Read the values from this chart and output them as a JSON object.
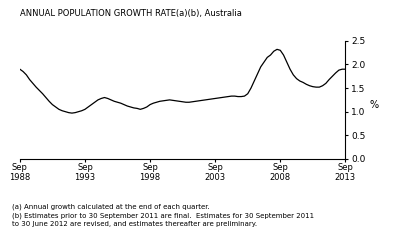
{
  "title": "ANNUAL POPULATION GROWTH RATE(a)(b), Australia",
  "ylabel": "%",
  "ylim": [
    0,
    2.5
  ],
  "yticks": [
    0,
    0.5,
    1.0,
    1.5,
    2.0,
    2.5
  ],
  "x_tick_labels": [
    "Sep\n1988",
    "Sep\n1993",
    "Sep\n1998",
    "Sep\n2003",
    "Sep\n2008",
    "Sep\n2013"
  ],
  "x_tick_positions": [
    1988.75,
    1993.75,
    1998.75,
    2003.75,
    2008.75,
    2013.75
  ],
  "footnote": "(a) Annual growth calculated at the end of each quarter.\n(b) Estimates prior to 30 September 2011 are final.  Estimates for 30 September 2011\nto 30 June 2012 are revised, and estimates thereafter are preliminary.",
  "line_color": "#000000",
  "line_width": 0.9,
  "background_color": "#ffffff",
  "xlim": [
    1988.75,
    2013.75
  ],
  "data": {
    "years": [
      1988.75,
      1989.0,
      1989.25,
      1989.5,
      1989.75,
      1990.0,
      1990.25,
      1990.5,
      1990.75,
      1991.0,
      1991.25,
      1991.5,
      1991.75,
      1992.0,
      1992.25,
      1992.5,
      1992.75,
      1993.0,
      1993.25,
      1993.5,
      1993.75,
      1994.0,
      1994.25,
      1994.5,
      1994.75,
      1995.0,
      1995.25,
      1995.5,
      1995.75,
      1996.0,
      1996.25,
      1996.5,
      1996.75,
      1997.0,
      1997.25,
      1997.5,
      1997.75,
      1998.0,
      1998.25,
      1998.5,
      1998.75,
      1999.0,
      1999.25,
      1999.5,
      1999.75,
      2000.0,
      2000.25,
      2000.5,
      2000.75,
      2001.0,
      2001.25,
      2001.5,
      2001.75,
      2002.0,
      2002.25,
      2002.5,
      2002.75,
      2003.0,
      2003.25,
      2003.5,
      2003.75,
      2004.0,
      2004.25,
      2004.5,
      2004.75,
      2005.0,
      2005.25,
      2005.5,
      2005.75,
      2006.0,
      2006.25,
      2006.5,
      2006.75,
      2007.0,
      2007.25,
      2007.5,
      2007.75,
      2008.0,
      2008.25,
      2008.5,
      2008.75,
      2009.0,
      2009.25,
      2009.5,
      2009.75,
      2010.0,
      2010.25,
      2010.5,
      2010.75,
      2011.0,
      2011.25,
      2011.5,
      2011.75,
      2012.0,
      2012.25,
      2012.5,
      2012.75,
      2013.0,
      2013.25,
      2013.5,
      2013.75
    ],
    "values": [
      1.9,
      1.85,
      1.78,
      1.68,
      1.6,
      1.52,
      1.45,
      1.38,
      1.3,
      1.22,
      1.15,
      1.1,
      1.05,
      1.02,
      1.0,
      0.98,
      0.97,
      0.98,
      1.0,
      1.02,
      1.05,
      1.1,
      1.15,
      1.2,
      1.25,
      1.28,
      1.3,
      1.28,
      1.25,
      1.22,
      1.2,
      1.18,
      1.15,
      1.12,
      1.1,
      1.08,
      1.07,
      1.05,
      1.07,
      1.1,
      1.15,
      1.18,
      1.2,
      1.22,
      1.23,
      1.24,
      1.25,
      1.24,
      1.23,
      1.22,
      1.21,
      1.2,
      1.2,
      1.21,
      1.22,
      1.23,
      1.24,
      1.25,
      1.26,
      1.27,
      1.28,
      1.29,
      1.3,
      1.31,
      1.32,
      1.33,
      1.33,
      1.32,
      1.32,
      1.33,
      1.38,
      1.5,
      1.65,
      1.8,
      1.95,
      2.05,
      2.15,
      2.2,
      2.28,
      2.32,
      2.3,
      2.2,
      2.05,
      1.9,
      1.78,
      1.7,
      1.65,
      1.62,
      1.58,
      1.55,
      1.53,
      1.52,
      1.52,
      1.55,
      1.6,
      1.68,
      1.75,
      1.82,
      1.88,
      1.9,
      1.9
    ]
  }
}
